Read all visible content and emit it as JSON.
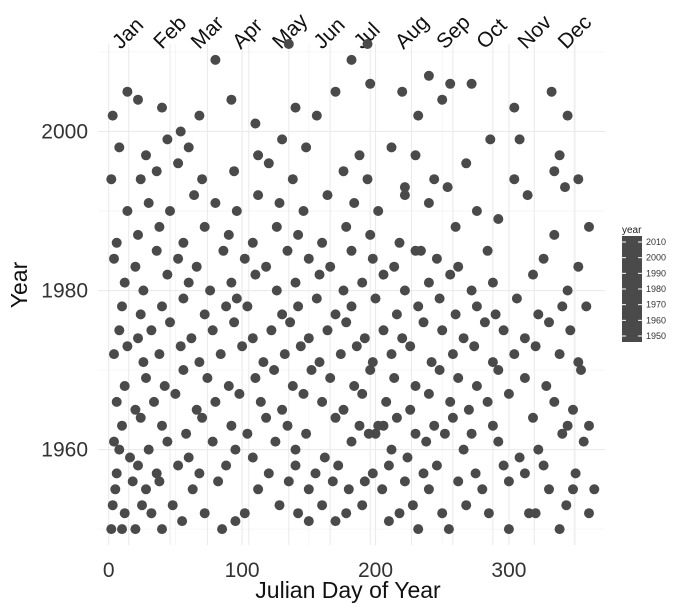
{
  "chart_data": {
    "type": "scatter",
    "title": "",
    "xlabel": "Julian Day of Year",
    "ylabel": "Year",
    "xlim": [
      -8,
      372
    ],
    "ylim": [
      1948,
      2011
    ],
    "x_ticks": [
      0,
      100,
      200,
      300
    ],
    "y_ticks": [
      1960,
      1980,
      2000
    ],
    "grid": true,
    "point_color": "#4a4a4a",
    "top_axis": {
      "labels": [
        "Jan",
        "Feb",
        "Mar",
        "Apr",
        "May",
        "Jun",
        "Jul",
        "Aug",
        "Sep",
        "Oct",
        "Nov",
        "Dec"
      ],
      "positions": [
        15,
        46,
        74,
        105,
        135,
        166,
        196,
        227,
        258,
        288,
        319,
        349
      ]
    },
    "legend": {
      "title": "year",
      "placement": "right",
      "labels": [
        "2010",
        "2000",
        "1990",
        "1980",
        "1970",
        "1960",
        "1950"
      ]
    },
    "points": [
      [
        2,
        1950
      ],
      [
        10,
        1950
      ],
      [
        20,
        1950
      ],
      [
        40,
        1950
      ],
      [
        55,
        1951
      ],
      [
        85,
        1950
      ],
      [
        95,
        1951
      ],
      [
        150,
        1951
      ],
      [
        170,
        1951
      ],
      [
        210,
        1951
      ],
      [
        232,
        1950
      ],
      [
        255,
        1950
      ],
      [
        300,
        1950
      ],
      [
        338,
        1950
      ],
      [
        3,
        1953
      ],
      [
        12,
        1952
      ],
      [
        25,
        1953
      ],
      [
        32,
        1952
      ],
      [
        48,
        1953
      ],
      [
        72,
        1952
      ],
      [
        102,
        1952
      ],
      [
        128,
        1953
      ],
      [
        142,
        1952
      ],
      [
        160,
        1953
      ],
      [
        178,
        1952
      ],
      [
        190,
        1953
      ],
      [
        218,
        1952
      ],
      [
        228,
        1953
      ],
      [
        250,
        1952
      ],
      [
        268,
        1953
      ],
      [
        285,
        1952
      ],
      [
        315,
        1952
      ],
      [
        320,
        1952
      ],
      [
        343,
        1953
      ],
      [
        360,
        1952
      ],
      [
        5,
        1955
      ],
      [
        18,
        1956
      ],
      [
        28,
        1955
      ],
      [
        38,
        1956
      ],
      [
        63,
        1955
      ],
      [
        82,
        1956
      ],
      [
        112,
        1955
      ],
      [
        135,
        1956
      ],
      [
        150,
        1955
      ],
      [
        168,
        1956
      ],
      [
        180,
        1955
      ],
      [
        192,
        1956
      ],
      [
        205,
        1955
      ],
      [
        222,
        1956
      ],
      [
        240,
        1955
      ],
      [
        262,
        1956
      ],
      [
        280,
        1955
      ],
      [
        300,
        1956
      ],
      [
        330,
        1955
      ],
      [
        348,
        1955
      ],
      [
        364,
        1955
      ],
      [
        6,
        1957
      ],
      [
        22,
        1958
      ],
      [
        36,
        1957
      ],
      [
        52,
        1958
      ],
      [
        68,
        1957
      ],
      [
        88,
        1958
      ],
      [
        120,
        1957
      ],
      [
        140,
        1958
      ],
      [
        155,
        1957
      ],
      [
        172,
        1958
      ],
      [
        198,
        1957
      ],
      [
        210,
        1958
      ],
      [
        236,
        1957
      ],
      [
        246,
        1958
      ],
      [
        275,
        1957
      ],
      [
        296,
        1958
      ],
      [
        312,
        1957
      ],
      [
        326,
        1958
      ],
      [
        350,
        1957
      ],
      [
        4,
        1961
      ],
      [
        8,
        1960
      ],
      [
        16,
        1959
      ],
      [
        30,
        1960
      ],
      [
        44,
        1961
      ],
      [
        60,
        1959
      ],
      [
        78,
        1961
      ],
      [
        95,
        1960
      ],
      [
        108,
        1959
      ],
      [
        125,
        1961
      ],
      [
        140,
        1960
      ],
      [
        162,
        1959
      ],
      [
        182,
        1961
      ],
      [
        195,
        1962
      ],
      [
        202,
        1963
      ],
      [
        212,
        1960
      ],
      [
        224,
        1959
      ],
      [
        238,
        1961
      ],
      [
        252,
        1962
      ],
      [
        266,
        1960
      ],
      [
        292,
        1961
      ],
      [
        308,
        1959
      ],
      [
        322,
        1960
      ],
      [
        340,
        1962
      ],
      [
        356,
        1961
      ],
      [
        10,
        1963
      ],
      [
        24,
        1964
      ],
      [
        40,
        1963
      ],
      [
        58,
        1962
      ],
      [
        70,
        1964
      ],
      [
        92,
        1963
      ],
      [
        104,
        1962
      ],
      [
        118,
        1964
      ],
      [
        134,
        1963
      ],
      [
        148,
        1962
      ],
      [
        170,
        1964
      ],
      [
        188,
        1963
      ],
      [
        200,
        1962
      ],
      [
        206,
        1963
      ],
      [
        216,
        1964
      ],
      [
        230,
        1962
      ],
      [
        244,
        1963
      ],
      [
        258,
        1964
      ],
      [
        272,
        1962
      ],
      [
        288,
        1963
      ],
      [
        318,
        1964
      ],
      [
        344,
        1963
      ],
      [
        360,
        1963
      ],
      [
        6,
        1966
      ],
      [
        20,
        1965
      ],
      [
        34,
        1966
      ],
      [
        50,
        1967
      ],
      [
        66,
        1965
      ],
      [
        80,
        1966
      ],
      [
        98,
        1967
      ],
      [
        114,
        1966
      ],
      [
        130,
        1965
      ],
      [
        146,
        1967
      ],
      [
        160,
        1966
      ],
      [
        176,
        1965
      ],
      [
        190,
        1967
      ],
      [
        208,
        1966
      ],
      [
        226,
        1965
      ],
      [
        240,
        1967
      ],
      [
        256,
        1966
      ],
      [
        270,
        1965
      ],
      [
        284,
        1966
      ],
      [
        300,
        1967
      ],
      [
        334,
        1966
      ],
      [
        348,
        1965
      ],
      [
        12,
        1968
      ],
      [
        28,
        1969
      ],
      [
        42,
        1968
      ],
      [
        56,
        1970
      ],
      [
        74,
        1969
      ],
      [
        90,
        1968
      ],
      [
        110,
        1969
      ],
      [
        124,
        1970
      ],
      [
        138,
        1968
      ],
      [
        152,
        1970
      ],
      [
        166,
        1969
      ],
      [
        184,
        1968
      ],
      [
        196,
        1970
      ],
      [
        214,
        1969
      ],
      [
        230,
        1968
      ],
      [
        248,
        1970
      ],
      [
        262,
        1969
      ],
      [
        276,
        1968
      ],
      [
        292,
        1970
      ],
      [
        312,
        1969
      ],
      [
        328,
        1968
      ],
      [
        354,
        1970
      ],
      [
        4,
        1972
      ],
      [
        14,
        1973
      ],
      [
        26,
        1971
      ],
      [
        38,
        1972
      ],
      [
        54,
        1973
      ],
      [
        68,
        1971
      ],
      [
        84,
        1972
      ],
      [
        100,
        1973
      ],
      [
        116,
        1971
      ],
      [
        132,
        1972
      ],
      [
        144,
        1973
      ],
      [
        158,
        1971
      ],
      [
        174,
        1972
      ],
      [
        186,
        1973
      ],
      [
        198,
        1971
      ],
      [
        212,
        1972
      ],
      [
        226,
        1973
      ],
      [
        242,
        1971
      ],
      [
        258,
        1972
      ],
      [
        274,
        1973
      ],
      [
        288,
        1971
      ],
      [
        304,
        1972
      ],
      [
        320,
        1973
      ],
      [
        338,
        1972
      ],
      [
        352,
        1971
      ],
      [
        8,
        1975
      ],
      [
        22,
        1974
      ],
      [
        32,
        1975
      ],
      [
        46,
        1976
      ],
      [
        62,
        1974
      ],
      [
        78,
        1975
      ],
      [
        94,
        1976
      ],
      [
        108,
        1974
      ],
      [
        122,
        1975
      ],
      [
        136,
        1976
      ],
      [
        150,
        1974
      ],
      [
        164,
        1975
      ],
      [
        178,
        1976
      ],
      [
        192,
        1974
      ],
      [
        206,
        1975
      ],
      [
        220,
        1974
      ],
      [
        236,
        1976
      ],
      [
        250,
        1975
      ],
      [
        266,
        1974
      ],
      [
        282,
        1976
      ],
      [
        296,
        1975
      ],
      [
        312,
        1974
      ],
      [
        330,
        1976
      ],
      [
        346,
        1975
      ],
      [
        10,
        1978
      ],
      [
        24,
        1977
      ],
      [
        40,
        1978
      ],
      [
        56,
        1979
      ],
      [
        72,
        1977
      ],
      [
        88,
        1978
      ],
      [
        96,
        1979
      ],
      [
        104,
        1978
      ],
      [
        130,
        1977
      ],
      [
        142,
        1978
      ],
      [
        156,
        1979
      ],
      [
        170,
        1977
      ],
      [
        182,
        1978
      ],
      [
        200,
        1979
      ],
      [
        216,
        1977
      ],
      [
        232,
        1978
      ],
      [
        248,
        1979
      ],
      [
        260,
        1977
      ],
      [
        276,
        1978
      ],
      [
        290,
        1977
      ],
      [
        306,
        1979
      ],
      [
        322,
        1977
      ],
      [
        340,
        1978
      ],
      [
        358,
        1978
      ],
      [
        12,
        1981
      ],
      [
        26,
        1980
      ],
      [
        44,
        1982
      ],
      [
        60,
        1981
      ],
      [
        76,
        1980
      ],
      [
        92,
        1981
      ],
      [
        110,
        1982
      ],
      [
        126,
        1980
      ],
      [
        140,
        1981
      ],
      [
        158,
        1982
      ],
      [
        176,
        1980
      ],
      [
        190,
        1981
      ],
      [
        206,
        1982
      ],
      [
        222,
        1980
      ],
      [
        240,
        1981
      ],
      [
        256,
        1982
      ],
      [
        272,
        1980
      ],
      [
        288,
        1981
      ],
      [
        318,
        1982
      ],
      [
        344,
        1980
      ],
      [
        4,
        1984
      ],
      [
        20,
        1983
      ],
      [
        36,
        1985
      ],
      [
        52,
        1984
      ],
      [
        66,
        1983
      ],
      [
        86,
        1985
      ],
      [
        102,
        1984
      ],
      [
        118,
        1983
      ],
      [
        134,
        1985
      ],
      [
        150,
        1984
      ],
      [
        166,
        1983
      ],
      [
        182,
        1985
      ],
      [
        198,
        1984
      ],
      [
        214,
        1983
      ],
      [
        230,
        1985
      ],
      [
        246,
        1984
      ],
      [
        262,
        1983
      ],
      [
        284,
        1985
      ],
      [
        326,
        1984
      ],
      [
        352,
        1983
      ],
      [
        6,
        1986
      ],
      [
        22,
        1987
      ],
      [
        38,
        1988
      ],
      [
        56,
        1986
      ],
      [
        72,
        1988
      ],
      [
        90,
        1987
      ],
      [
        108,
        1986
      ],
      [
        126,
        1988
      ],
      [
        142,
        1987
      ],
      [
        160,
        1986
      ],
      [
        178,
        1988
      ],
      [
        196,
        1987
      ],
      [
        218,
        1986
      ],
      [
        234,
        1985
      ],
      [
        260,
        1988
      ],
      [
        292,
        1989
      ],
      [
        334,
        1987
      ],
      [
        360,
        1988
      ],
      [
        14,
        1990
      ],
      [
        30,
        1991
      ],
      [
        46,
        1990
      ],
      [
        64,
        1992
      ],
      [
        80,
        1991
      ],
      [
        96,
        1990
      ],
      [
        112,
        1992
      ],
      [
        128,
        1991
      ],
      [
        146,
        1990
      ],
      [
        164,
        1992
      ],
      [
        184,
        1991
      ],
      [
        202,
        1990
      ],
      [
        222,
        1992
      ],
      [
        240,
        1991
      ],
      [
        254,
        1993
      ],
      [
        276,
        1990
      ],
      [
        314,
        1992
      ],
      [
        342,
        1993
      ],
      [
        2,
        1994
      ],
      [
        24,
        1994
      ],
      [
        36,
        1995
      ],
      [
        52,
        1996
      ],
      [
        70,
        1994
      ],
      [
        94,
        1995
      ],
      [
        120,
        1996
      ],
      [
        138,
        1994
      ],
      [
        176,
        1995
      ],
      [
        194,
        1994
      ],
      [
        222,
        1993
      ],
      [
        244,
        1994
      ],
      [
        268,
        1996
      ],
      [
        304,
        1994
      ],
      [
        334,
        1995
      ],
      [
        352,
        1994
      ],
      [
        8,
        1998
      ],
      [
        28,
        1997
      ],
      [
        44,
        1999
      ],
      [
        60,
        1998
      ],
      [
        112,
        1997
      ],
      [
        130,
        1999
      ],
      [
        148,
        1998
      ],
      [
        188,
        1997
      ],
      [
        212,
        1998
      ],
      [
        230,
        1997
      ],
      [
        286,
        1999
      ],
      [
        308,
        1999
      ],
      [
        338,
        1997
      ],
      [
        3,
        2002
      ],
      [
        14,
        2005
      ],
      [
        22,
        2004
      ],
      [
        40,
        2003
      ],
      [
        54,
        2000
      ],
      [
        68,
        2002
      ],
      [
        92,
        2004
      ],
      [
        110,
        2001
      ],
      [
        140,
        2003
      ],
      [
        156,
        2002
      ],
      [
        170,
        2005
      ],
      [
        196,
        2006
      ],
      [
        220,
        2005
      ],
      [
        232,
        2002
      ],
      [
        250,
        2004
      ],
      [
        272,
        2006
      ],
      [
        304,
        2003
      ],
      [
        332,
        2005
      ],
      [
        344,
        2002
      ],
      [
        80,
        2009
      ],
      [
        135,
        2011
      ],
      [
        182,
        2009
      ],
      [
        194,
        2011
      ],
      [
        240,
        2007
      ],
      [
        256,
        2006
      ]
    ]
  }
}
